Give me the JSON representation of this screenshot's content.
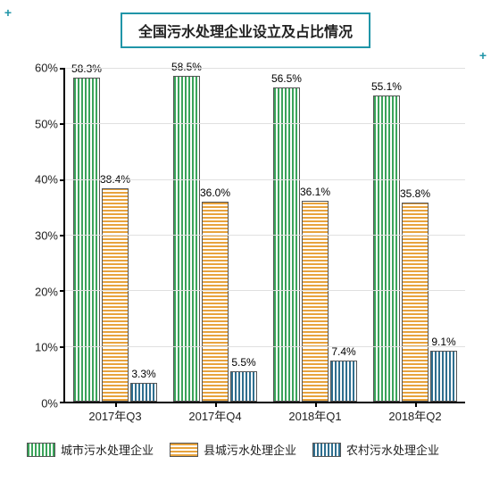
{
  "title": "全国污水处理企业设立及占比情况",
  "chart": {
    "type": "bar",
    "ylim": [
      0,
      60
    ],
    "ytick_step": 10,
    "grid_color": "#e0e0e0",
    "axis_color": "#000000",
    "background_color": "#ffffff",
    "title_fontsize": 16,
    "label_fontsize": 13,
    "value_label_fontsize": 12,
    "categories": [
      "2017年Q3",
      "2017年Q4",
      "2018年Q1",
      "2018年Q2"
    ],
    "series": [
      {
        "name": "城市污水处理企业",
        "color": "#3aa35a",
        "hatch": "v",
        "values": [
          58.3,
          58.5,
          56.5,
          55.1
        ],
        "labels": [
          "58.3%",
          "58.5%",
          "56.5%",
          "55.1%"
        ]
      },
      {
        "name": "县城污水处理企业",
        "color": "#e8a33d",
        "hatch": "h",
        "values": [
          38.4,
          36.0,
          36.1,
          35.8
        ],
        "labels": [
          "38.4%",
          "36.0%",
          "36.1%",
          "35.8%"
        ]
      },
      {
        "name": "农村污水处理企业",
        "color": "#2f6f8f",
        "hatch": "v",
        "values": [
          3.3,
          5.5,
          7.4,
          9.1
        ],
        "labels": [
          "3.3%",
          "5.5%",
          "7.4%",
          "9.1%"
        ]
      }
    ]
  }
}
